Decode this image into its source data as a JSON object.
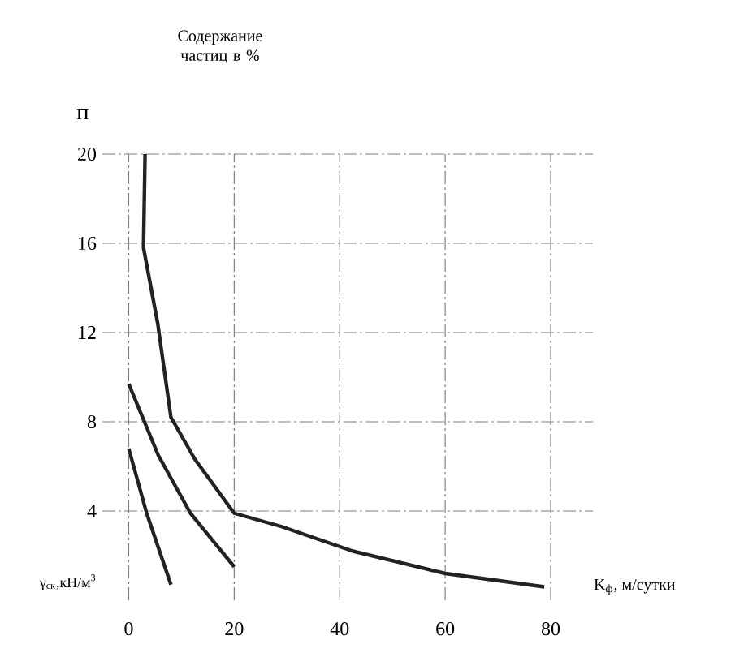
{
  "chart_data": {
    "type": "line",
    "ylabel": "п",
    "xlabel": "K$_{ф}$, м/сутки",
    "annotations": [
      "Содержание частиц в %",
      "γ$_{ск}$,кН/м$^{3}$"
    ],
    "series": [
      {
        "color": "#222222",
        "x": [
          3.1,
          2.8,
          5.5,
          8,
          12.6,
          20,
          29,
          42.5,
          60,
          78.8
        ],
        "values": [
          20,
          15.8,
          12.4,
          8.2,
          6.3,
          3.9,
          3.3,
          2.2,
          1.2,
          0.6
        ]
      },
      {
        "color": "#222222",
        "x": [
          0,
          5.6,
          11.7,
          20
        ],
        "values": [
          9.7,
          6.5,
          3.9,
          1.5
        ]
      },
      {
        "color": "#222222",
        "x": [
          0,
          3.4,
          8
        ],
        "values": [
          6.8,
          3.9,
          0.7
        ]
      }
    ],
    "xlim": [
      -5,
      88
    ],
    "ylim": [
      0,
      20
    ],
    "xticks": [
      0,
      20,
      40,
      60,
      80
    ],
    "yticks": [
      4,
      8,
      12,
      16,
      20
    ],
    "grid": true,
    "marker": "none",
    "line_style": "solid"
  }
}
